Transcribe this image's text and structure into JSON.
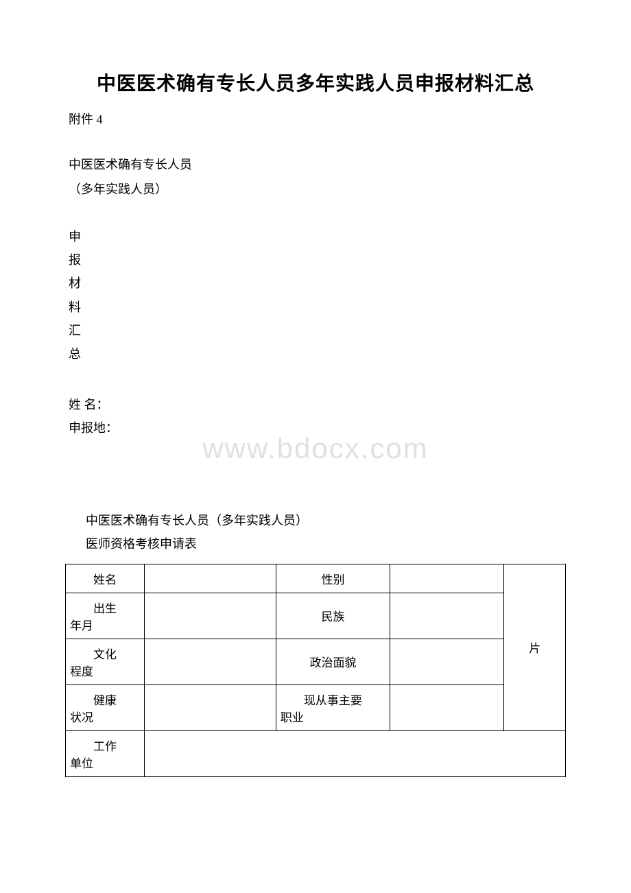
{
  "title": "中医医术确有专长人员多年实践人员申报材料汇总",
  "attachment_label": "附件 4",
  "section1_line1": "中医医术确有专长人员",
  "section1_line2": "（多年实践人员）",
  "vertical_chars": [
    "申",
    "报",
    "材",
    "料",
    "汇",
    "总"
  ],
  "name_label": "姓 名：",
  "location_label": "申报地：",
  "table_title_line1": "中医医术确有专长人员（多年实践人员）",
  "table_title_line2": "医师资格考核申请表",
  "watermark": "www.bdocx.com",
  "table": {
    "rows": [
      {
        "label1": "姓名",
        "label1_wrap": false,
        "value1": "",
        "label2": "性别",
        "label2_wrap": false,
        "value2": ""
      },
      {
        "label1_first": "出生",
        "label1_second": "年月",
        "label1_wrap": true,
        "value1": "",
        "label2": "民族",
        "label2_wrap": false,
        "value2": ""
      },
      {
        "label1_first": "文化",
        "label1_second": "程度",
        "label1_wrap": true,
        "value1": "",
        "label2": "政治面貌",
        "label2_wrap": false,
        "value2": ""
      },
      {
        "label1_first": "健康",
        "label1_second": "状况",
        "label1_wrap": true,
        "value1": "",
        "label2_first": "现从事主要",
        "label2_second": "职业",
        "label2_wrap": true,
        "value2": ""
      },
      {
        "label1_first": "工作",
        "label1_second": "单位",
        "label1_wrap": true,
        "value1": "",
        "full_row": true
      }
    ],
    "photo_label": "片"
  }
}
